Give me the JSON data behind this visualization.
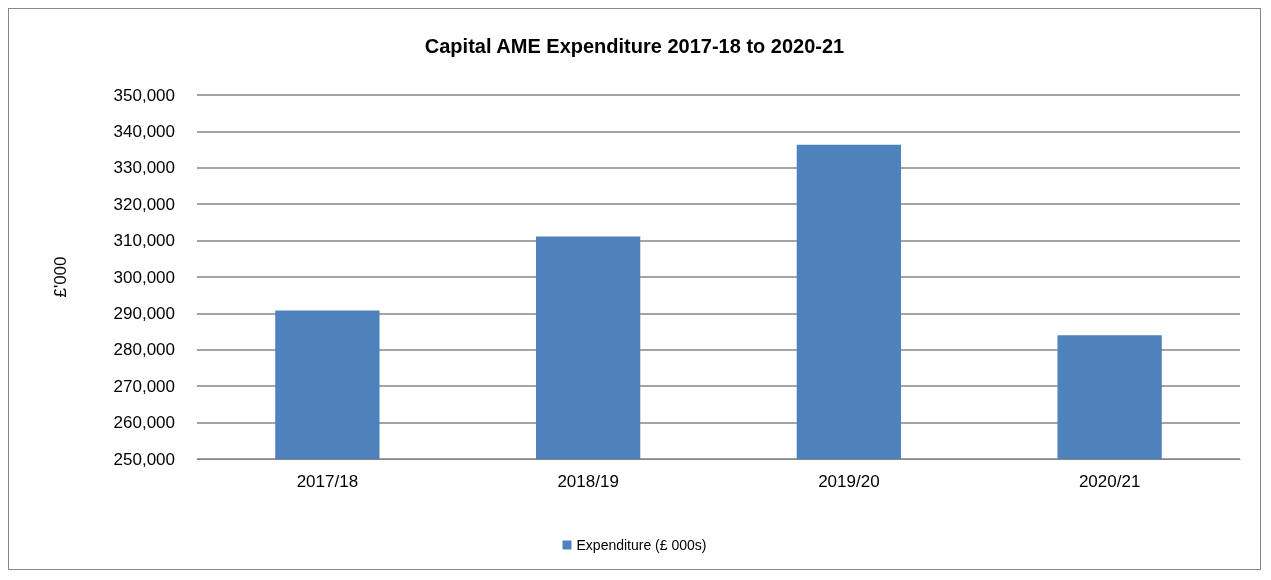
{
  "chart_data": {
    "type": "bar",
    "title": "Capital AME Expenditure 2017-18 to 2020-21",
    "ylabel": "£'000",
    "categories": [
      "2017/18",
      "2018/19",
      "2019/20",
      "2020/21"
    ],
    "series": [
      {
        "name": "Expenditure (£ 000s)",
        "color": "#4f81bd",
        "values": [
          290800,
          311100,
          336300,
          284000
        ]
      }
    ],
    "ylim": [
      250000,
      350000
    ],
    "yticks": [
      {
        "value": 250000,
        "label": "250,000"
      },
      {
        "value": 260000,
        "label": "260,000"
      },
      {
        "value": 270000,
        "label": "270,000"
      },
      {
        "value": 280000,
        "label": "280,000"
      },
      {
        "value": 290000,
        "label": "290,000"
      },
      {
        "value": 300000,
        "label": "300,000"
      },
      {
        "value": 310000,
        "label": "310,000"
      },
      {
        "value": 320000,
        "label": "320,000"
      },
      {
        "value": 330000,
        "label": "330,000"
      },
      {
        "value": 340000,
        "label": "340,000"
      },
      {
        "value": 350000,
        "label": "350,000"
      }
    ],
    "grid": "y",
    "legend": "bottom"
  }
}
